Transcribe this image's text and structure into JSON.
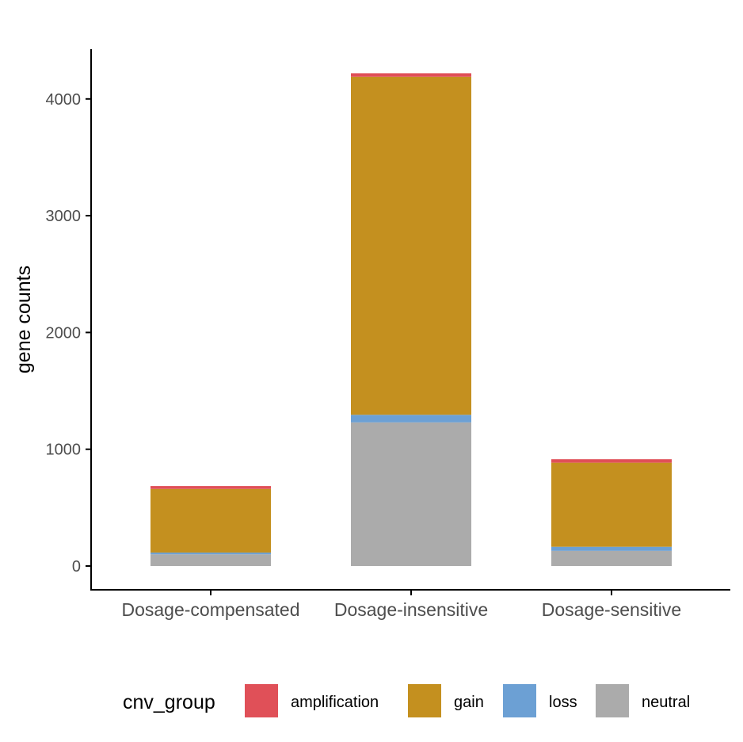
{
  "chart_data": {
    "type": "bar",
    "stacked": true,
    "categories": [
      "Dosage-compensated",
      "Dosage-insensitive",
      "Dosage-sensitive"
    ],
    "series": [
      {
        "name": "neutral",
        "color": "#ABABAB",
        "values": [
          100,
          1230,
          130
        ]
      },
      {
        "name": "loss",
        "color": "#6CA0D4",
        "values": [
          15,
          65,
          35
        ]
      },
      {
        "name": "gain",
        "color": "#C4901F",
        "values": [
          545,
          2895,
          720
        ]
      },
      {
        "name": "amplification",
        "color": "#E05058",
        "values": [
          25,
          30,
          30
        ]
      }
    ],
    "xlabel": "",
    "ylabel": "gene counts",
    "ylim": [
      -200,
      4420
    ],
    "yticks": [
      0,
      1000,
      2000,
      3000,
      4000
    ],
    "grid": false,
    "legend": {
      "title": "cnv_group",
      "position": "bottom",
      "order": [
        "amplification",
        "gain",
        "loss",
        "neutral"
      ]
    }
  }
}
